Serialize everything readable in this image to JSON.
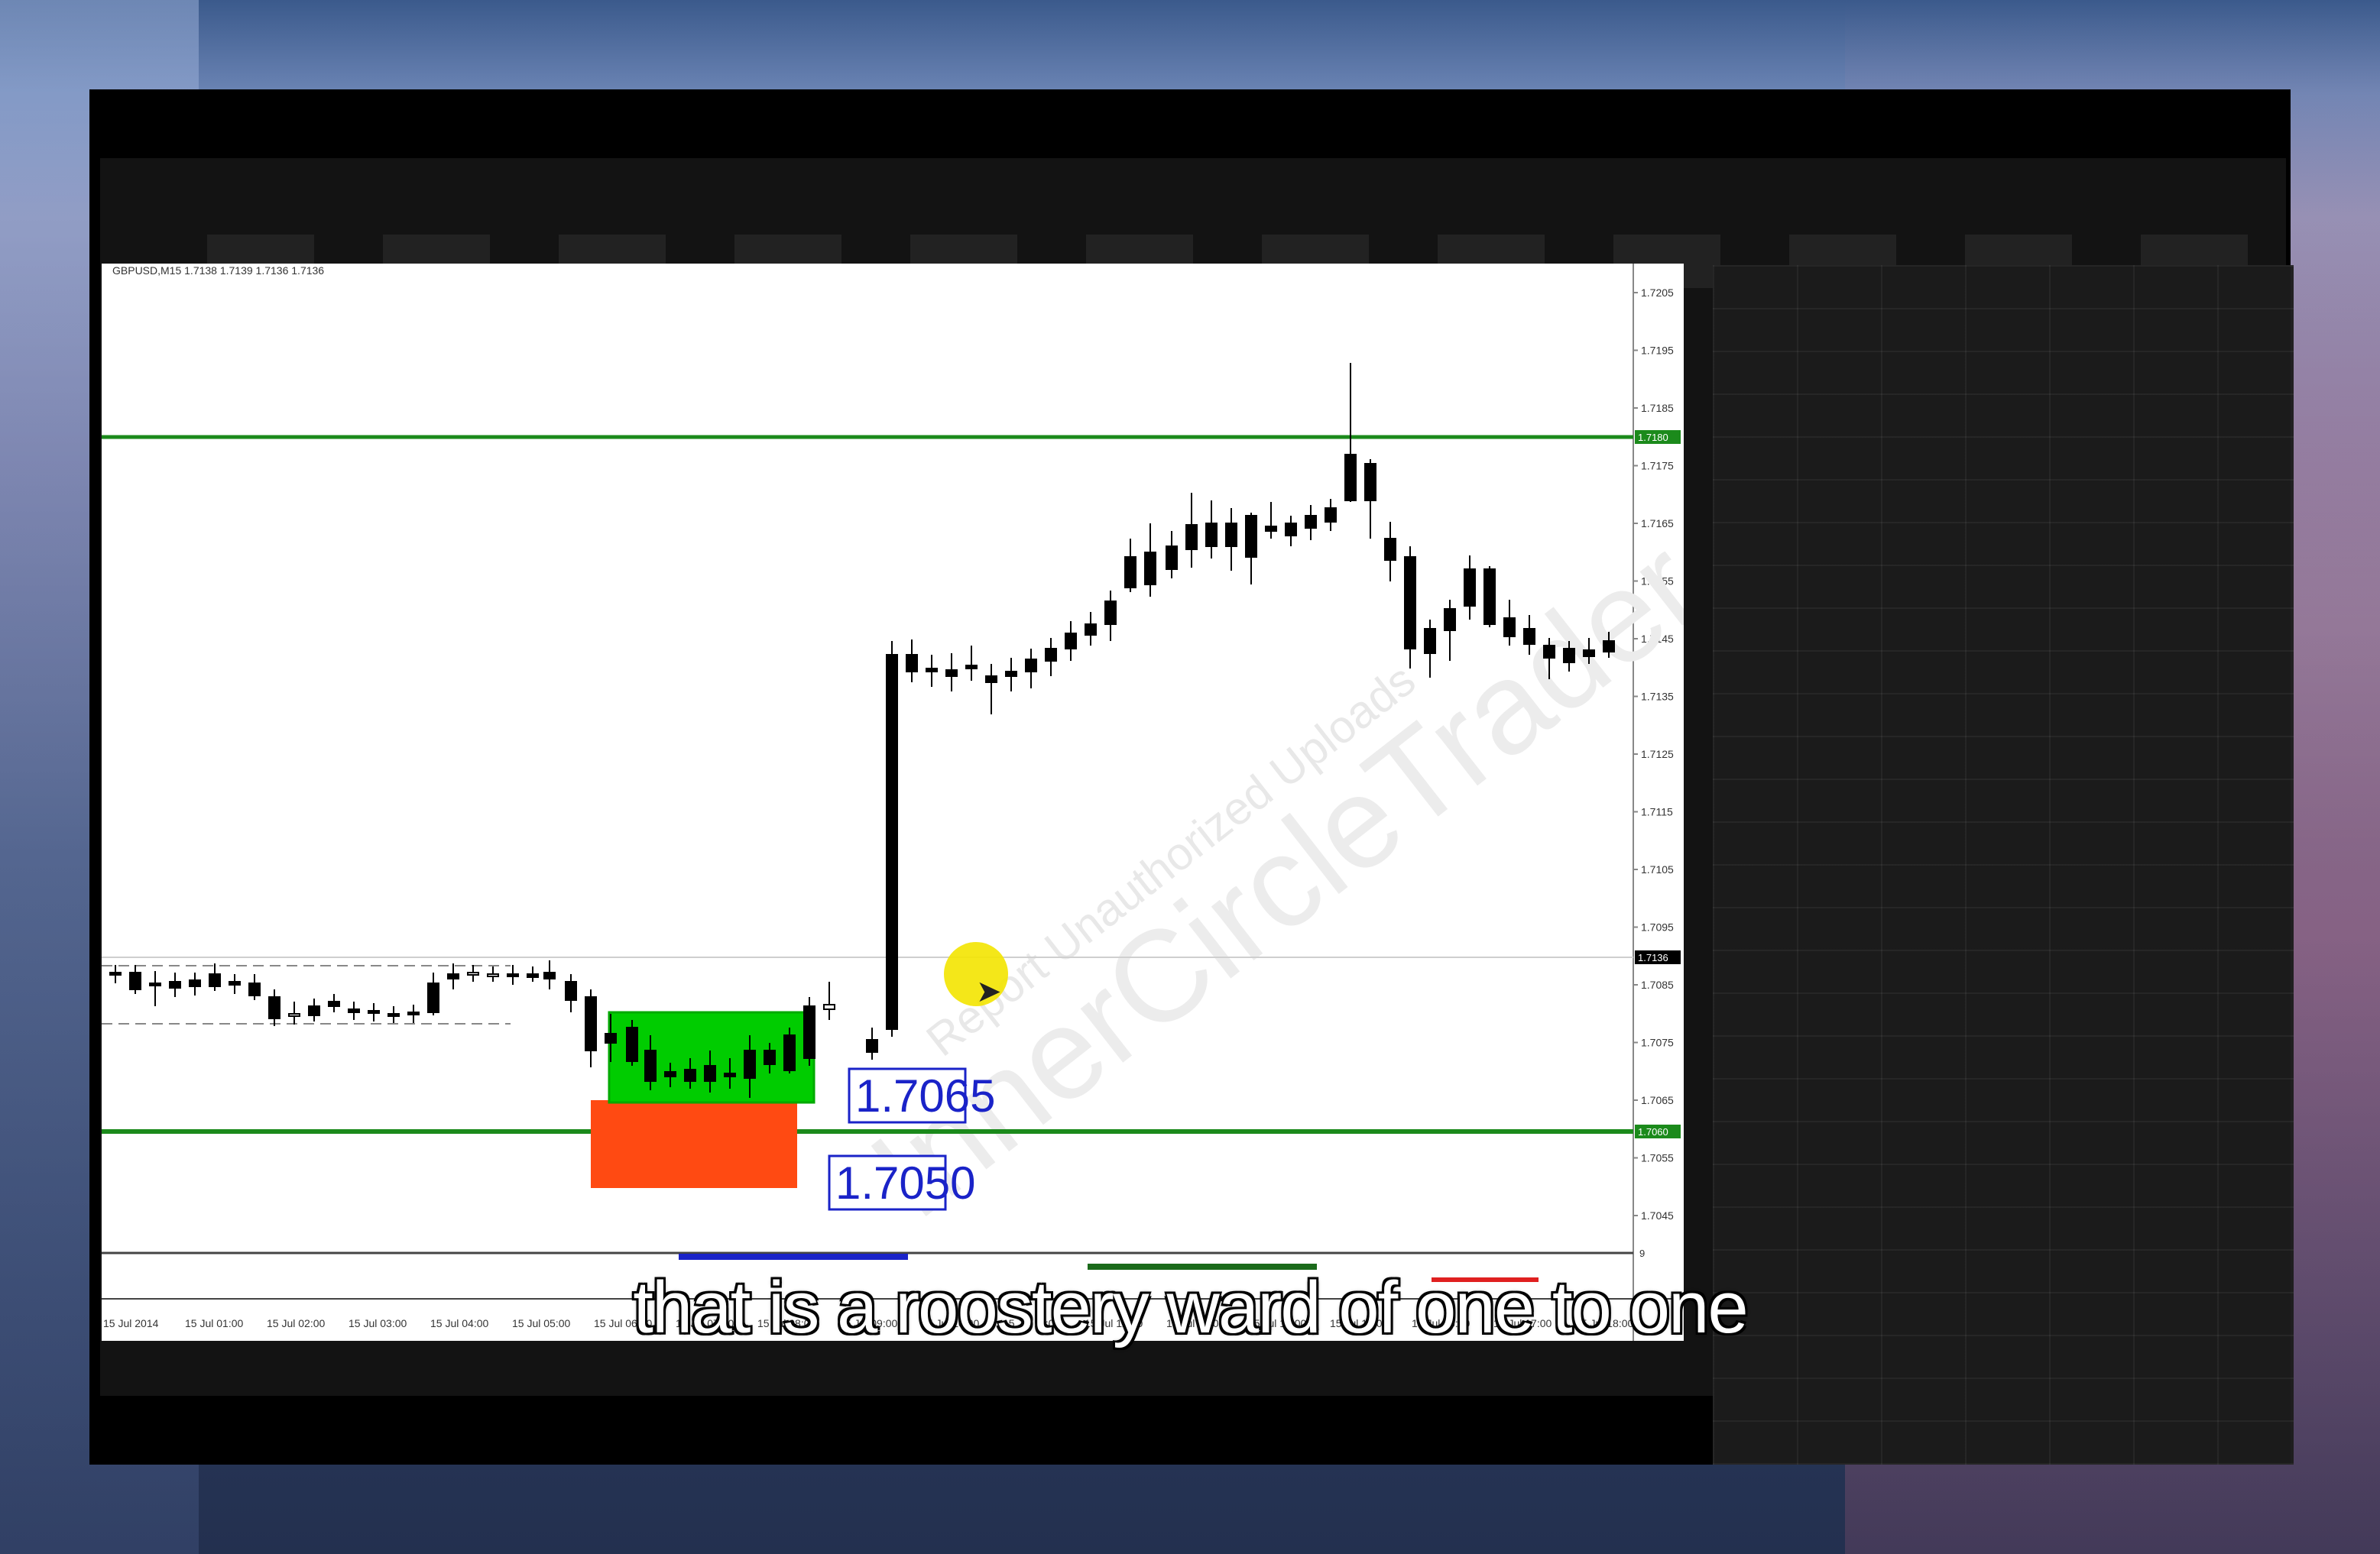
{
  "chart": {
    "symbol_header": "GBPUSD,M15  1.7138 1.7139 1.7136 1.7136",
    "price_labels": [
      "1.7205",
      "1.7195",
      "1.7185",
      "1.7175",
      "1.7165",
      "1.7155",
      "1.7145",
      "1.7135",
      "1.7125",
      "1.7115",
      "1.7105",
      "1.7095",
      "1.7085",
      "1.7075",
      "1.7065",
      "1.7055",
      "1.7045"
    ],
    "tag_upper": "1.7180",
    "tag_current": "1.7136",
    "tag_lower": "1.7060",
    "box_label_green": "1.7065",
    "box_label_red": "1.7050",
    "time_labels": [
      "15 Jul 2014",
      "15 Jul 01:00",
      "15 Jul 02:00",
      "15 Jul 03:00",
      "15 Jul 04:00",
      "15 Jul 05:00",
      "15 Jul 06:00",
      "15 Jul 07:00",
      "15 Jul 08:00",
      "15 Jul 09:00",
      "15 Jul 10:00",
      "15 Jul 11:00",
      "15 Jul 12:00",
      "15 Jul 13:00",
      "15 Jul 14:00",
      "15 Jul 15:00",
      "15 Jul 16:00",
      "15 Jul 17:00",
      "15 Jul 18:00"
    ],
    "watermark": "Report Unauthorized Uploads",
    "watermark2": "InnerCircleTrader.com",
    "subwindow_label": "9",
    "colors": {
      "green_box": "#00cc00",
      "red_box": "#ff4a12",
      "level_line": "#1b8a1b",
      "label_blue": "#1a23c8"
    }
  },
  "subtitle": "that is a roostery ward of one to one"
}
